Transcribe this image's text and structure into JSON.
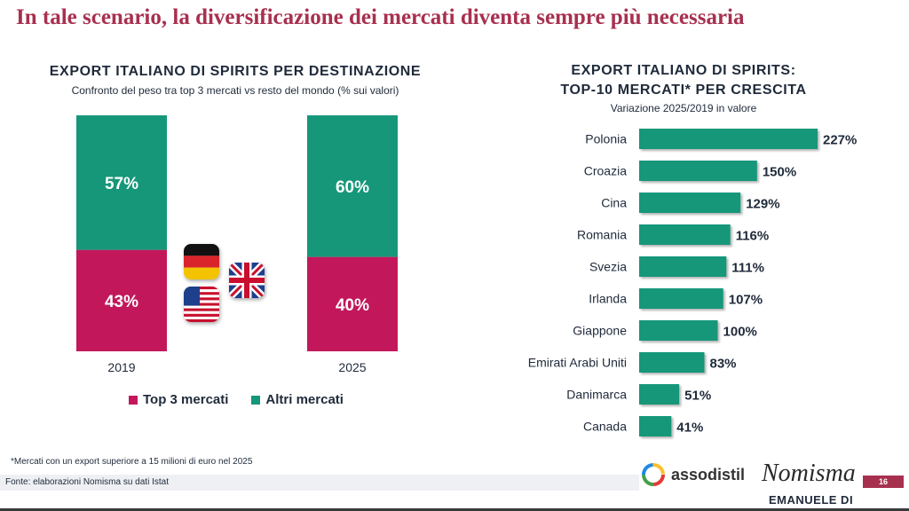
{
  "page": {
    "title": "In tale scenario, la diversificazione dei mercati diventa sempre più necessaria",
    "footnote": "*Mercati con un export superiore a 15 milioni di euro nel 2025",
    "source": "Fonte: elaborazioni Nomisma su dati Istat",
    "logo_assodistil": "assodistil",
    "logo_nomisma": "Nomisma",
    "page_number": "16",
    "author": "EMANUELE DI FAUSTINO"
  },
  "colors": {
    "top3": "#c2185b",
    "altri": "#16977a",
    "bar": "#16977a",
    "title": "#a8304f"
  },
  "chart_data": [
    {
      "type": "bar",
      "stacked": true,
      "title": "EXPORT ITALIANO DI SPIRITS PER DESTINAZIONE",
      "subtitle": "Confronto del peso tra top 3 mercati vs resto del mondo (% sui valori)",
      "categories": [
        "2019",
        "2025"
      ],
      "series": [
        {
          "name": "Top 3 mercati",
          "values": [
            43,
            40
          ],
          "labels": [
            "43%",
            "40%"
          ]
        },
        {
          "name": "Altri mercati",
          "values": [
            57,
            60
          ],
          "labels": [
            "57%",
            "60%"
          ]
        }
      ],
      "ylim": [
        0,
        100
      ],
      "legend": "bottom",
      "flags": [
        "germany-flag",
        "uk-flag",
        "usa-flag"
      ]
    },
    {
      "type": "bar",
      "orientation": "horizontal",
      "title_line1": "EXPORT ITALIANO DI SPIRITS:",
      "title_line2": "TOP-10 MERCATI* PER CRESCITA",
      "subtitle": "Variazione 2025/2019 in valore",
      "categories": [
        "Polonia",
        "Croazia",
        "Cina",
        "Romania",
        "Svezia",
        "Irlanda",
        "Giappone",
        "Emirati Arabi Uniti",
        "Danimarca",
        "Canada"
      ],
      "values": [
        227,
        150,
        129,
        116,
        111,
        107,
        100,
        83,
        51,
        41
      ],
      "labels": [
        "227%",
        "150%",
        "129%",
        "116%",
        "111%",
        "107%",
        "100%",
        "83%",
        "51%",
        "41%"
      ]
    }
  ]
}
